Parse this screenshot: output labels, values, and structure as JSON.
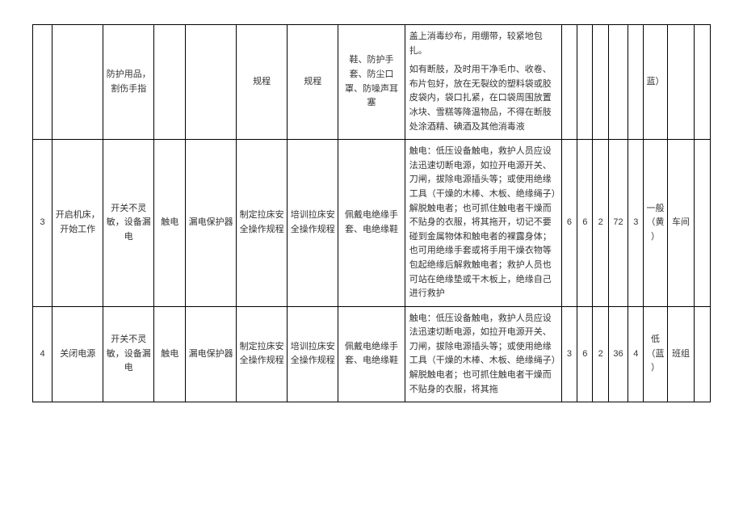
{
  "rows": [
    {
      "c0": "",
      "c1": "",
      "c2": "防护用品，割伤手指",
      "c3": "",
      "c4": "",
      "c5": "规程",
      "c6": "规程",
      "c7": "鞋、防护手套、防尘口罩、防噪声耳塞",
      "c8": "盖上消毒纱布，用绷带，较紧地包扎。\n如有断肢，及时用干净毛巾、收卷、布片包好，放在无裂纹的塑料袋或胶皮袋内，袋口扎紧，在口袋周围放置冰块、雪糕等降温物品，不得在断肢处涂酒精、碘酒及其他消毒液",
      "c9": "",
      "c10": "",
      "c11": "",
      "c12": "",
      "c13": "",
      "c14": "蓝）",
      "c15": "",
      "c16": ""
    },
    {
      "c0": "3",
      "c1": "开启机床，开始工作",
      "c2": "开关不灵敏，设备漏电",
      "c3": "触电",
      "c4": "漏电保护器",
      "c5": "制定拉床安全操作规程",
      "c6": "培训拉床安全操作规程",
      "c7": "佩戴电绝缘手套、电绝缘鞋",
      "c8": "触电：低压设备触电，救护人员应设法迅速切断电源，如拉开电源开关、刀闸，拔除电源插头等；或使用绝缘工具（干燥的木棒、木板、绝缘绳子）解脱触电者；也可抓住触电者干燥而不贴身的衣服，将其拖开，切记不要碰到金属物体和触电者的裸露身体；也可用绝缘手套或将手用干燥衣物等包起绝缘后解救触电者；救护人员也可站在绝缘垫或干木板上，绝缘自己进行救护",
      "c9": "6",
      "c10": "6",
      "c11": "2",
      "c12": "72",
      "c13": "3",
      "c14": "一般（黄）",
      "c15": "车间",
      "c16": ""
    },
    {
      "c0": "4",
      "c1": "关闭电源",
      "c2": "开关不灵敏，设备漏电",
      "c3": "触电",
      "c4": "漏电保护器",
      "c5": "制定拉床安全操作规程",
      "c6": "培训拉床安全操作规程",
      "c7": "佩戴电绝缘手套、电绝缘鞋",
      "c8": "触电：低压设备触电，救护人员应设法迅速切断电源，如拉开电源开关、刀闸，拔除电源插头等；或使用绝缘工具（干燥的木棒、木板、绝缘绳子）解脱触电者；也可抓住触电者干燥而不贴身的衣服，将其拖",
      "c9": "3",
      "c10": "6",
      "c11": "2",
      "c12": "36",
      "c13": "4",
      "c14": "低（蓝）",
      "c15": "班组",
      "c16": ""
    }
  ]
}
